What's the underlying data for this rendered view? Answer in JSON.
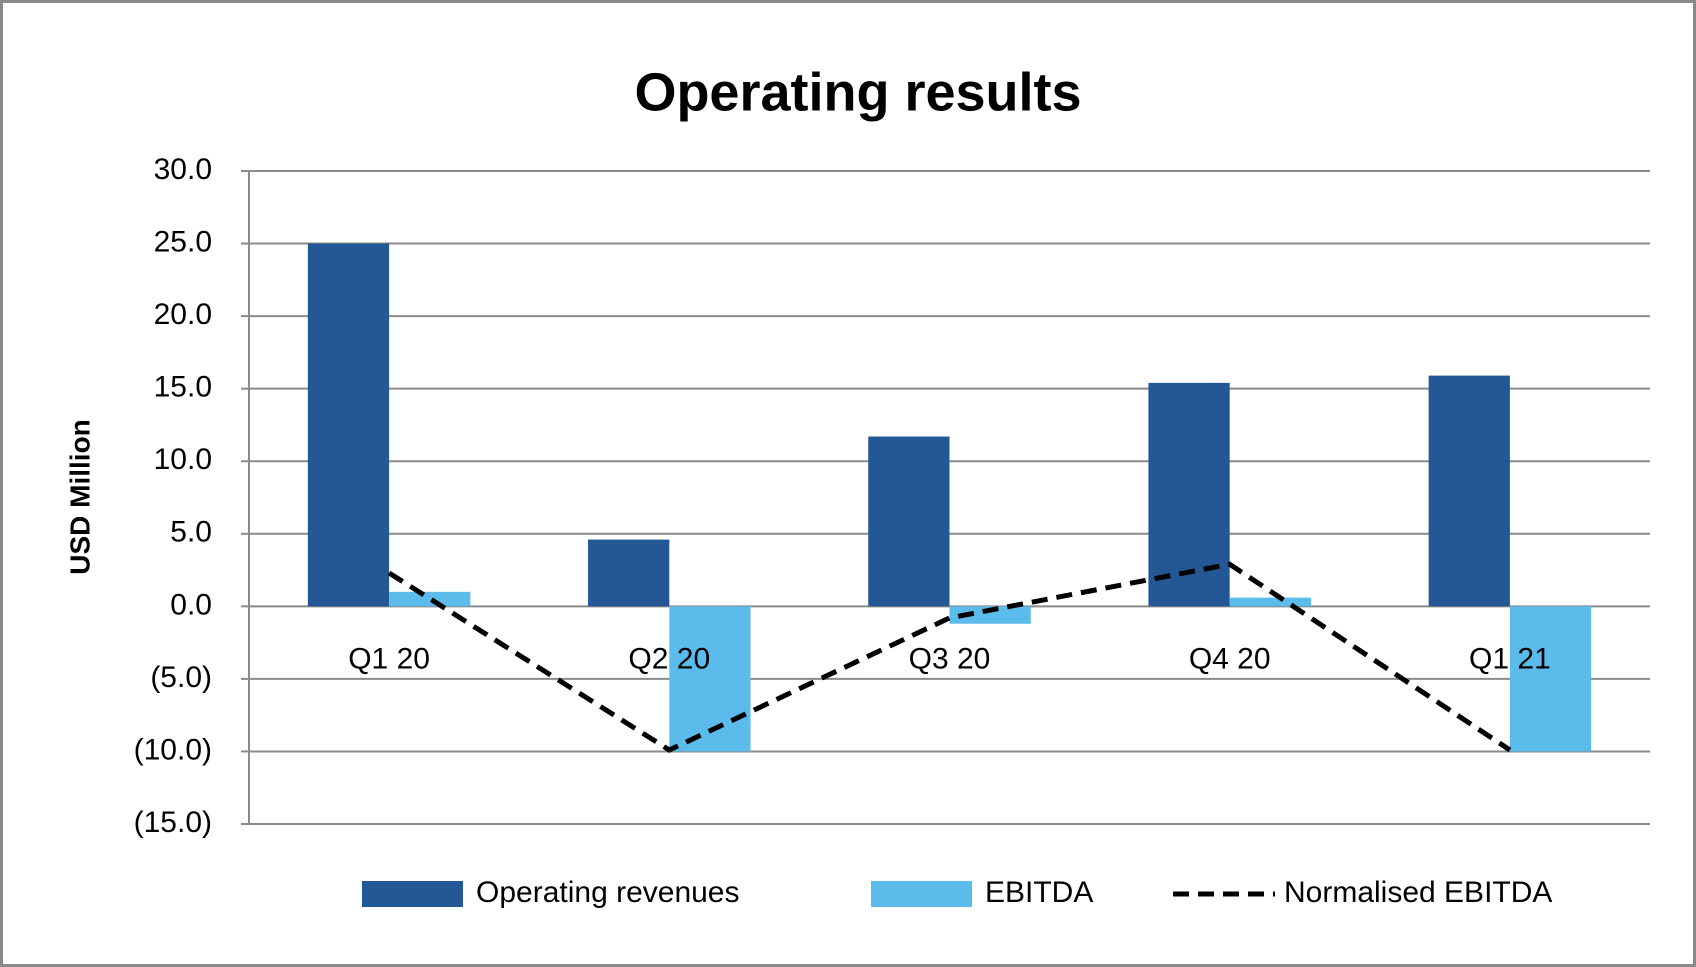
{
  "chart_data": {
    "type": "bar",
    "title": "Operating results",
    "y_label": "USD Million",
    "categories": [
      "Q1 20",
      "Q2 20",
      "Q3 20",
      "Q4 20",
      "Q1 21"
    ],
    "series": [
      {
        "name": "Operating revenues",
        "type": "bar",
        "color": "#245795",
        "values": [
          25.0,
          4.6,
          11.7,
          15.4,
          15.9
        ]
      },
      {
        "name": "EBITDA",
        "type": "bar",
        "color": "#5bbcec",
        "values": [
          1.0,
          -10.0,
          -1.2,
          0.6,
          -10.0
        ]
      },
      {
        "name": "Normalised EBITDA",
        "type": "line",
        "color": "#000000",
        "dash": true,
        "values": [
          2.3,
          -9.9,
          -0.8,
          2.9,
          -9.9
        ]
      }
    ],
    "ylim": [
      -15,
      30
    ],
    "yticks": [
      {
        "value": 30,
        "label": "30.0"
      },
      {
        "value": 25,
        "label": "25.0"
      },
      {
        "value": 20,
        "label": "20.0"
      },
      {
        "value": 15,
        "label": "15.0"
      },
      {
        "value": 10,
        "label": "10.0"
      },
      {
        "value": 5,
        "label": "5.0"
      },
      {
        "value": 0,
        "label": "0.0"
      },
      {
        "value": -5,
        "label": "(5.0)"
      },
      {
        "value": -10,
        "label": "(10.0)"
      },
      {
        "value": -15,
        "label": "(15.0)"
      }
    ],
    "grid": true,
    "legend": "bottom"
  }
}
